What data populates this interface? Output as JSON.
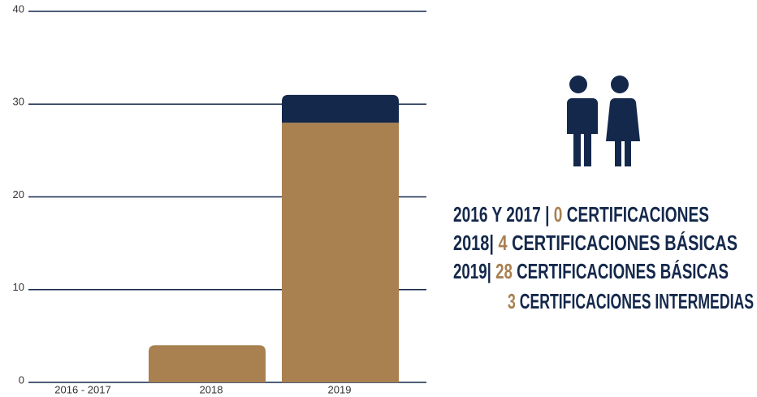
{
  "chart_data": {
    "type": "bar",
    "stacked": true,
    "categories": [
      "2016 - 2017",
      "2018",
      "2019"
    ],
    "series": [
      {
        "color": "#a98050",
        "values": [
          0,
          4,
          28
        ]
      },
      {
        "color": "#14284b",
        "values": [
          0,
          0,
          3
        ]
      }
    ],
    "ylim": [
      0,
      40
    ],
    "yticks": [
      0,
      10,
      20,
      30,
      40
    ],
    "grid": true,
    "legend": false
  },
  "summary": [
    {
      "lead": "2016 Y 2017 |",
      "count": "0",
      "text": "CERTIFICACIONES"
    },
    {
      "lead": "2018|",
      "count": "4",
      "text": "CERTIFICACIONES BÁSICAS"
    },
    {
      "lead": "2019|",
      "count": "28",
      "text": "CERTIFICACIONES BÁSICAS"
    },
    {
      "count": "3",
      "text": "CERTIFICACIONES INTERMEDIAS"
    }
  ]
}
